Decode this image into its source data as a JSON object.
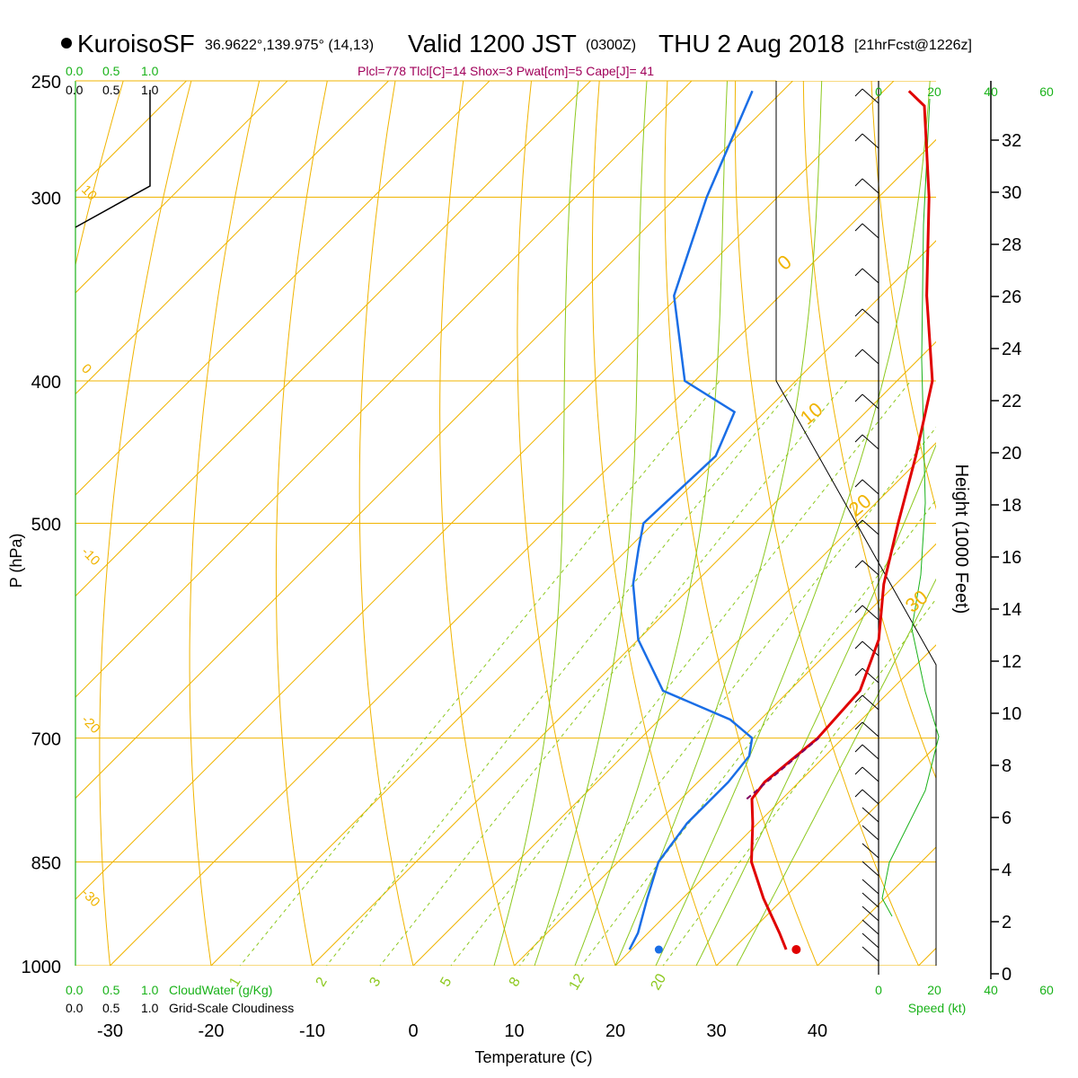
{
  "header": {
    "station": "KuroisoSF",
    "coords": "36.9622°,139.975° (14,13)",
    "valid": "Valid 1200 JST",
    "utc": "(0300Z)",
    "date": "THU 2 Aug 2018",
    "forecast": "[21hrFcst@1226z]",
    "indices": "Plcl=778 Tlcl[C]=14 Shox=3 Pwat[cm]=5 Cape[J]= 41"
  },
  "legends": {
    "cloudwater_ticks": [
      "0.0",
      "0.5",
      "1.0"
    ],
    "cloudiness_ticks": [
      "0.0",
      "0.5",
      "1.0"
    ],
    "cloudwater_label": "CloudWater (g/Kg)",
    "cloudiness_label": "Grid-Scale Cloudiness",
    "speed_ticks": [
      "0",
      "20",
      "40",
      "60"
    ],
    "speed_label": "Speed (kt)"
  },
  "colors": {
    "temperature": "#e00000",
    "dewpoint": "#1a6ee6",
    "isotherm": "#f0b400",
    "dry_adiabat": "#f0b400",
    "moist_adiabat": "#8cc81e",
    "mixing_ratio": "#8cc81e",
    "cloud_green": "#19b219",
    "parcel": "#800060"
  },
  "chart_data": {
    "type": "line",
    "title": "KuroisoSF 36.9622°,139.975° (14,13) Valid 1200 JST (0300Z) THU 2 Aug 2018 [21hrFcst@1226z]",
    "xlabel": "Temperature (C)",
    "ylabel": "P (hPa)",
    "y2label": "Height (1000 Feet)",
    "x_ticks": [
      -30,
      -20,
      -10,
      0,
      10,
      20,
      30,
      40
    ],
    "pressure_ticks": [
      250,
      300,
      400,
      500,
      700,
      850,
      1000
    ],
    "height_ticks": [
      0,
      2,
      4,
      6,
      8,
      10,
      12,
      14,
      16,
      18,
      20,
      22,
      24,
      26,
      28,
      30,
      32
    ],
    "isotherm_labels": [
      10,
      0,
      -10,
      -20,
      -30
    ],
    "dry_adiabat_labels": [
      0,
      10,
      20,
      30
    ],
    "mixing_ratio_labels": [
      "1",
      "2",
      "3",
      "5",
      "8",
      "12",
      "20"
    ],
    "series": [
      {
        "name": "Temperature",
        "points": [
          [
            35.3,
            975
          ],
          [
            33.0,
            950
          ],
          [
            28.0,
            900
          ],
          [
            23.2,
            850
          ],
          [
            19.5,
            800
          ],
          [
            17.0,
            770
          ],
          [
            16.6,
            750
          ],
          [
            17.5,
            700
          ],
          [
            17.0,
            650
          ],
          [
            13.8,
            600
          ],
          [
            8.8,
            550
          ],
          [
            4.2,
            500
          ],
          [
            -0.7,
            450
          ],
          [
            -6.5,
            400
          ],
          [
            -15.5,
            350
          ],
          [
            -25.0,
            300
          ],
          [
            -34.5,
            260
          ],
          [
            -37.5,
            254
          ]
        ]
      },
      {
        "name": "Dewpoint",
        "points": [
          [
            19.8,
            975
          ],
          [
            19.0,
            950
          ],
          [
            16.5,
            900
          ],
          [
            14.0,
            850
          ],
          [
            13.0,
            800
          ],
          [
            13.0,
            750
          ],
          [
            12.5,
            720
          ],
          [
            11.0,
            700
          ],
          [
            7.0,
            680
          ],
          [
            -2.5,
            650
          ],
          [
            -10.0,
            600
          ],
          [
            -16.0,
            550
          ],
          [
            -19.0,
            520
          ],
          [
            -21.0,
            500
          ],
          [
            -20.5,
            450
          ],
          [
            -23.0,
            420
          ],
          [
            -31.0,
            400
          ],
          [
            -40.5,
            350
          ],
          [
            -47.0,
            300
          ],
          [
            -53.0,
            254
          ]
        ]
      },
      {
        "name": "Parcel",
        "points": [
          [
            16.5,
            770
          ],
          [
            16.8,
            750
          ],
          [
            17.6,
            700
          ]
        ]
      }
    ],
    "surface_temperature": 36.3,
    "surface_dewpoint": 22.7,
    "surface_pressure": 975
  }
}
